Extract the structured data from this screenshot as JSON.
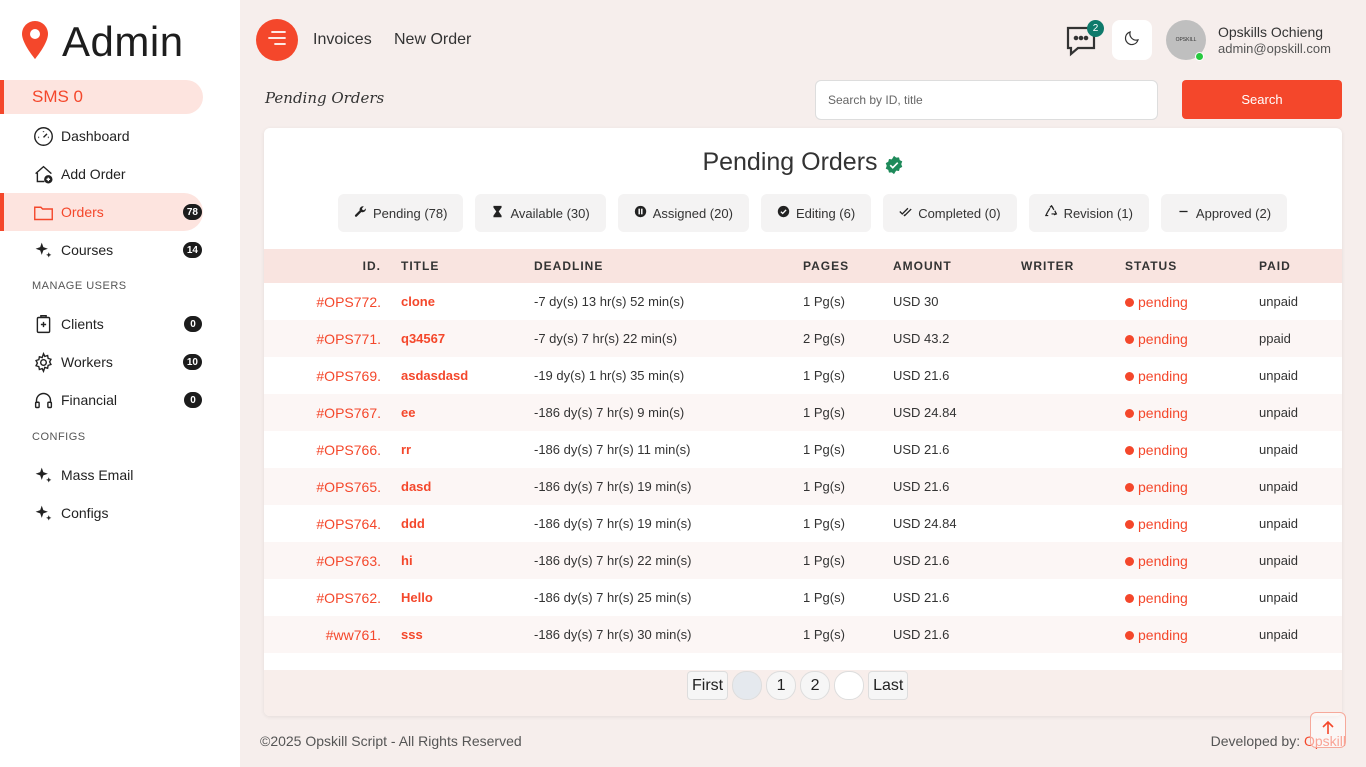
{
  "brand": {
    "name": "Admin"
  },
  "sms": {
    "label": "SMS 0"
  },
  "sidebar": {
    "items": [
      {
        "label": "Dashboard"
      },
      {
        "label": "Add Order"
      },
      {
        "label": "Orders",
        "badge": "78"
      },
      {
        "label": "Courses",
        "badge": "14"
      },
      {
        "label": "Clients",
        "badge": "0"
      },
      {
        "label": "Workers",
        "badge": "10"
      },
      {
        "label": "Financial",
        "badge": "0"
      },
      {
        "label": "Mass Email"
      },
      {
        "label": "Configs"
      }
    ],
    "sections": {
      "manage_users": "MANAGE USERS",
      "configs": "CONFIGS"
    }
  },
  "header": {
    "links": [
      "Invoices",
      "New Order"
    ],
    "chat_badge": "2",
    "user": {
      "name": "Opskills Ochieng",
      "email": "admin@opskill.com",
      "avatar_text": "OPSKILL"
    }
  },
  "page": {
    "heading": "Pending Orders"
  },
  "search": {
    "placeholder": "Search by ID, title",
    "button": "Search"
  },
  "card": {
    "title": "Pending Orders",
    "filters": [
      {
        "label": "Pending (78)",
        "icon": "wrench-icon"
      },
      {
        "label": "Available (30)",
        "icon": "hourglass-icon"
      },
      {
        "label": "Assigned (20)",
        "icon": "pause-circle-icon"
      },
      {
        "label": "Editing (6)",
        "icon": "check-circle-icon"
      },
      {
        "label": "Completed (0)",
        "icon": "double-check-icon"
      },
      {
        "label": "Revision (1)",
        "icon": "recycle-icon"
      },
      {
        "label": "Approved (2)",
        "icon": "dash-icon"
      }
    ]
  },
  "table": {
    "headers": [
      "ID.",
      "TITLE",
      "DEADLINE",
      "PAGES",
      "AMOUNT",
      "WRITER",
      "STATUS",
      "PAID"
    ],
    "rows": [
      {
        "id": "#OPS772.",
        "title": "clone",
        "deadline": "-7 dy(s) 13 hr(s) 52 min(s)",
        "pages": "1 Pg(s)",
        "amount": "USD 30",
        "writer": "",
        "status": "pending",
        "paid": "unpaid"
      },
      {
        "id": "#OPS771.",
        "title": "q34567",
        "deadline": "-7 dy(s) 7 hr(s) 22 min(s)",
        "pages": "2 Pg(s)",
        "amount": "USD 43.2",
        "writer": "",
        "status": "pending",
        "paid": "ppaid"
      },
      {
        "id": "#OPS769.",
        "title": "asdasdasd",
        "deadline": "-19 dy(s) 1 hr(s) 35 min(s)",
        "pages": "1 Pg(s)",
        "amount": "USD 21.6",
        "writer": "",
        "status": "pending",
        "paid": "unpaid"
      },
      {
        "id": "#OPS767.",
        "title": "ee",
        "deadline": "-186 dy(s) 7 hr(s) 9 min(s)",
        "pages": "1 Pg(s)",
        "amount": "USD 24.84",
        "writer": "",
        "status": "pending",
        "paid": "unpaid"
      },
      {
        "id": "#OPS766.",
        "title": "rr",
        "deadline": "-186 dy(s) 7 hr(s) 11 min(s)",
        "pages": "1 Pg(s)",
        "amount": "USD 21.6",
        "writer": "",
        "status": "pending",
        "paid": "unpaid"
      },
      {
        "id": "#OPS765.",
        "title": "dasd",
        "deadline": "-186 dy(s) 7 hr(s) 19 min(s)",
        "pages": "1 Pg(s)",
        "amount": "USD 21.6",
        "writer": "",
        "status": "pending",
        "paid": "unpaid"
      },
      {
        "id": "#OPS764.",
        "title": "ddd",
        "deadline": "-186 dy(s) 7 hr(s) 19 min(s)",
        "pages": "1 Pg(s)",
        "amount": "USD 24.84",
        "writer": "",
        "status": "pending",
        "paid": "unpaid"
      },
      {
        "id": "#OPS763.",
        "title": "hi",
        "deadline": "-186 dy(s) 7 hr(s) 22 min(s)",
        "pages": "1 Pg(s)",
        "amount": "USD 21.6",
        "writer": "",
        "status": "pending",
        "paid": "unpaid"
      },
      {
        "id": "#OPS762.",
        "title": "Hello",
        "deadline": "-186 dy(s) 7 hr(s) 25 min(s)",
        "pages": "1 Pg(s)",
        "amount": "USD 21.6",
        "writer": "",
        "status": "pending",
        "paid": "unpaid"
      },
      {
        "id": "#ww761.",
        "title": "sss",
        "deadline": "-186 dy(s) 7 hr(s) 30 min(s)",
        "pages": "1 Pg(s)",
        "amount": "USD 21.6",
        "writer": "",
        "status": "pending",
        "paid": "unpaid"
      }
    ]
  },
  "pagination": {
    "first": "First",
    "pages": [
      "",
      "1",
      "2",
      ""
    ],
    "last": "Last"
  },
  "footer": {
    "copyright": "©2025 Opskill Script - All Rights Reserved",
    "developed_by": "Developed by:",
    "developer": "Opskill"
  },
  "colors": {
    "accent": "#f4472b",
    "accent_light": "#fde4df",
    "badge_dark": "#1c1c1c",
    "chat_badge": "#0f7a6b",
    "verified": "#1e8a5a"
  }
}
